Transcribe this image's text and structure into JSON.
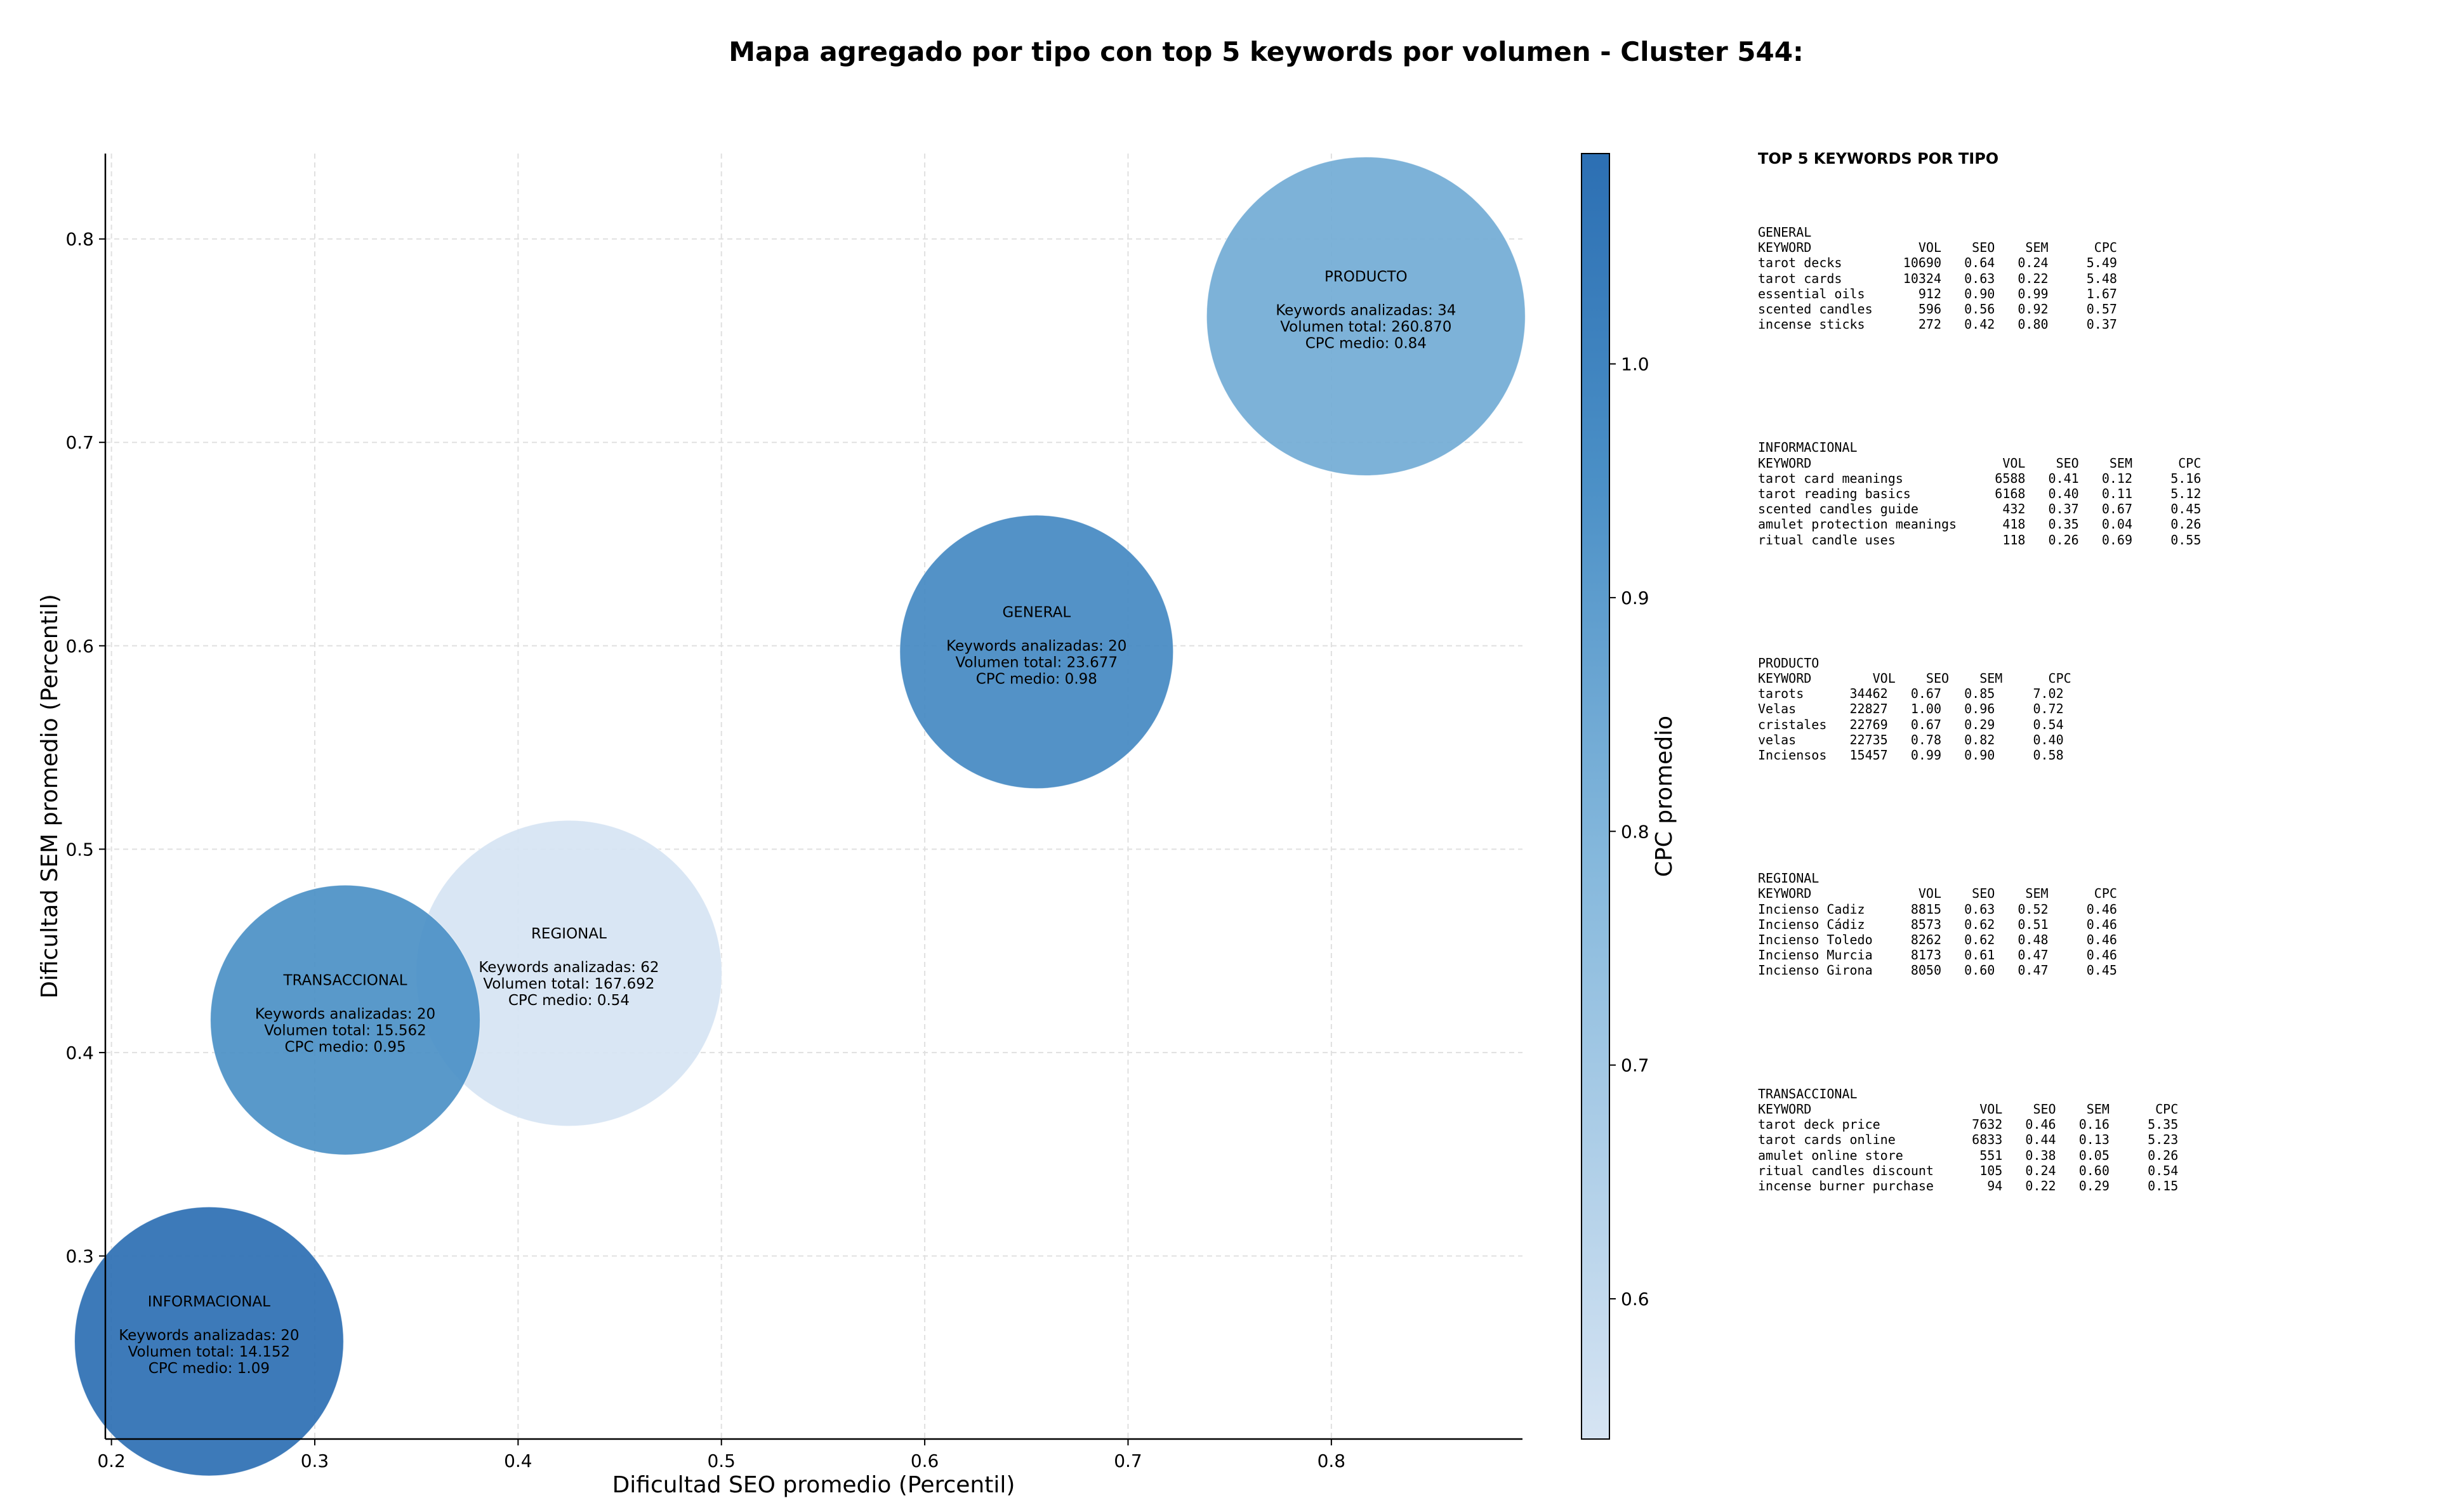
{
  "chart_data": {
    "type": "scatter",
    "title": "Mapa agregado por tipo con top 5 keywords por volumen - Cluster 544:",
    "xlabel": "Dificultad SEO promedio (Percentil)",
    "ylabel": "Dificultad SEM promedio (Percentil)",
    "xlim": [
      0.197,
      0.894
    ],
    "ylim": [
      0.21,
      0.842
    ],
    "xticks": [
      0.2,
      0.3,
      0.4,
      0.5,
      0.6,
      0.7,
      0.8
    ],
    "yticks": [
      0.3,
      0.4,
      0.5,
      0.6,
      0.7,
      0.8
    ],
    "grid": true,
    "colorbar": {
      "label": "CPC promedio",
      "min": 0.54,
      "max": 1.09,
      "ticks": [
        0.6,
        0.7,
        0.8,
        0.9,
        1.0
      ],
      "low_color": "#d6e4f3",
      "high_color": "#2c6fb3"
    },
    "points": [
      {
        "tipo": "PRODUCTO",
        "x": 0.817,
        "y": 0.762,
        "keywords": 34,
        "volumen": "260.870",
        "cpc": 0.84,
        "keywords_text": "Keywords analizadas: 34",
        "volumen_text": "Volumen total: 260.870",
        "cpc_text": "CPC medio: 0.84"
      },
      {
        "tipo": "GENERAL",
        "x": 0.655,
        "y": 0.597,
        "keywords": 20,
        "volumen": "23.677",
        "cpc": 0.98,
        "keywords_text": "Keywords analizadas: 20",
        "volumen_text": "Volumen total: 23.677",
        "cpc_text": "CPC medio: 0.98"
      },
      {
        "tipo": "REGIONAL",
        "x": 0.425,
        "y": 0.439,
        "keywords": 62,
        "volumen": "167.692",
        "cpc": 0.54,
        "keywords_text": "Keywords analizadas: 62",
        "volumen_text": "Volumen total: 167.692",
        "cpc_text": "CPC medio: 0.54"
      },
      {
        "tipo": "TRANSACCIONAL",
        "x": 0.315,
        "y": 0.416,
        "keywords": 20,
        "volumen": "15.562",
        "cpc": 0.95,
        "keywords_text": "Keywords analizadas: 20",
        "volumen_text": "Volumen total: 15.562",
        "cpc_text": "CPC medio: 0.95"
      },
      {
        "tipo": "INFORMACIONAL",
        "x": 0.248,
        "y": 0.258,
        "keywords": 20,
        "volumen": "14.152",
        "cpc": 1.09,
        "keywords_text": "Keywords analizadas: 20",
        "volumen_text": "Volumen total: 14.152",
        "cpc_text": "CPC medio: 1.09"
      }
    ]
  },
  "panel": {
    "title": "TOP 5 KEYWORDS POR TIPO",
    "sections": [
      {
        "tipo": "GENERAL",
        "header": "KEYWORD              VOL    SEO    SEM      CPC",
        "rows": [
          "tarot decks        10690   0.64   0.24     5.49",
          "tarot cards        10324   0.63   0.22     5.48",
          "essential oils       912   0.90   0.99     1.67",
          "scented candles      596   0.56   0.92     0.57",
          "incense sticks       272   0.42   0.80     0.37"
        ]
      },
      {
        "tipo": "INFORMACIONAL",
        "header": "KEYWORD                         VOL    SEO    SEM      CPC",
        "rows": [
          "tarot card meanings            6588   0.41   0.12     5.16",
          "tarot reading basics           6168   0.40   0.11     5.12",
          "scented candles guide           432   0.37   0.67     0.45",
          "amulet protection meanings      418   0.35   0.04     0.26",
          "ritual candle uses              118   0.26   0.69     0.55"
        ]
      },
      {
        "tipo": "PRODUCTO",
        "header": "KEYWORD        VOL    SEO    SEM      CPC",
        "rows": [
          "tarots      34462   0.67   0.85     7.02",
          "Velas       22827   1.00   0.96     0.72",
          "cristales   22769   0.67   0.29     0.54",
          "velas       22735   0.78   0.82     0.40",
          "Inciensos   15457   0.99   0.90     0.58"
        ]
      },
      {
        "tipo": "REGIONAL",
        "header": "KEYWORD              VOL    SEO    SEM      CPC",
        "rows": [
          "Incienso Cadiz      8815   0.63   0.52     0.46",
          "Incienso Cádiz      8573   0.62   0.51     0.46",
          "Incienso Toledo     8262   0.62   0.48     0.46",
          "Incienso Murcia     8173   0.61   0.47     0.46",
          "Incienso Girona     8050   0.60   0.47     0.45"
        ]
      },
      {
        "tipo": "TRANSACCIONAL",
        "header": "KEYWORD                      VOL    SEO    SEM      CPC",
        "rows": [
          "tarot deck price            7632   0.46   0.16     5.35",
          "tarot cards online          6833   0.44   0.13     5.23",
          "amulet online store          551   0.38   0.05     0.26",
          "ritual candles discount      105   0.24   0.60     0.54",
          "incense burner purchase       94   0.22   0.29     0.15"
        ]
      }
    ]
  }
}
